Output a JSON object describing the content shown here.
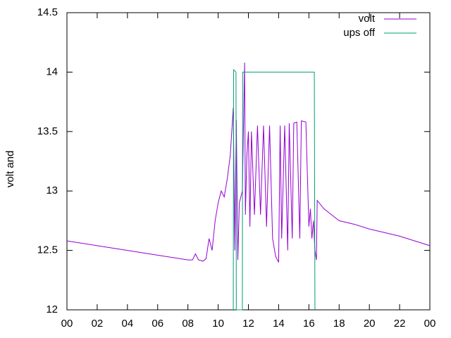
{
  "chart_data": {
    "type": "line",
    "ylabel": "volt and",
    "xlim": [
      0,
      24
    ],
    "xticks": [
      {
        "value": 0,
        "label": "00"
      },
      {
        "value": 2,
        "label": "02"
      },
      {
        "value": 4,
        "label": "04"
      },
      {
        "value": 6,
        "label": "06"
      },
      {
        "value": 8,
        "label": "08"
      },
      10,
      12,
      14,
      16,
      18,
      20,
      22,
      {
        "value": 24,
        "label": "00"
      }
    ],
    "ylim": [
      12,
      14.5
    ],
    "yticks": [
      12,
      12.5,
      13,
      13.5,
      14,
      14.5
    ],
    "grid": false,
    "legend": "top-right",
    "series": [
      {
        "name": "volt",
        "color": "#9400d3",
        "x": [
          0,
          1,
          2,
          3,
          4,
          5,
          6,
          7,
          8,
          8.3,
          8.5,
          8.7,
          9,
          9.2,
          9.4,
          9.6,
          9.8,
          10,
          10.2,
          10.4,
          10.6,
          10.8,
          10.9,
          11.0,
          11.1,
          11.2,
          11.3,
          11.4,
          11.6,
          11.75,
          11.8,
          11.9,
          12.0,
          12.1,
          12.2,
          12.4,
          12.6,
          12.8,
          13.0,
          13.2,
          13.4,
          13.6,
          13.8,
          14.0,
          14.1,
          14.2,
          14.4,
          14.6,
          14.7,
          14.9,
          15.0,
          15.2,
          15.4,
          15.5,
          15.8,
          16.0,
          16.1,
          16.2,
          16.3,
          16.4,
          16.5,
          16.55,
          17,
          17.5,
          18,
          19,
          20,
          21,
          22,
          23,
          24
        ],
        "values": [
          12.58,
          12.56,
          12.54,
          12.52,
          12.5,
          12.48,
          12.46,
          12.44,
          12.42,
          12.42,
          12.47,
          12.42,
          12.41,
          12.43,
          12.6,
          12.5,
          12.75,
          12.9,
          13.0,
          12.95,
          13.1,
          13.3,
          13.5,
          13.7,
          12.5,
          13.6,
          12.42,
          12.9,
          13.0,
          14.08,
          12.8,
          13.3,
          13.5,
          12.7,
          13.5,
          12.8,
          13.55,
          12.8,
          13.55,
          12.7,
          13.55,
          12.6,
          12.45,
          12.4,
          13.55,
          12.6,
          13.55,
          12.5,
          13.57,
          12.6,
          13.57,
          13.58,
          12.6,
          13.59,
          13.58,
          12.7,
          12.85,
          12.6,
          12.75,
          12.5,
          12.42,
          12.92,
          12.85,
          12.8,
          12.75,
          12.72,
          12.68,
          12.65,
          12.62,
          12.58,
          12.54
        ]
      },
      {
        "name": "ups off",
        "color": "#009e73",
        "x": [
          11.0,
          11.02,
          11.18,
          11.2,
          11.6,
          11.62,
          16.36,
          16.4
        ],
        "values": [
          12,
          14.02,
          14.0,
          12,
          12,
          14,
          14,
          12
        ]
      }
    ]
  }
}
